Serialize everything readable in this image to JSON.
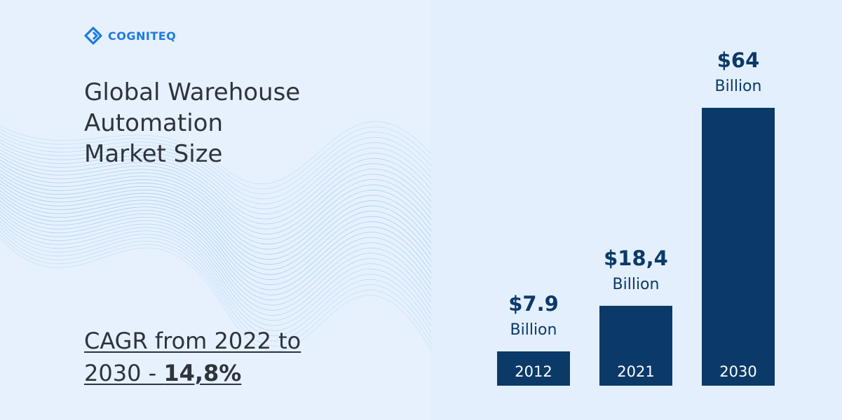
{
  "brand": {
    "name": "COGNITEQ",
    "logo_icon": "cogniteq-logo-icon",
    "color": "#1e7ae0"
  },
  "headline": {
    "lines": [
      "Global Warehouse",
      "Automation",
      "Market Size"
    ]
  },
  "cagr": {
    "line1": "CAGR from 2022 to",
    "line2_prefix": "2030 - ",
    "value": "14,8%"
  },
  "colors": {
    "bar": "#0b3a68",
    "bar_label": "#ffffff",
    "value_text": "#0b3a68",
    "background": "#e6f1fd",
    "accent": "#1e7ae0"
  },
  "chart_data": {
    "type": "bar",
    "categories": [
      "2012",
      "2021",
      "2030"
    ],
    "values": [
      7.9,
      18.4,
      64
    ],
    "value_labels": [
      "$7.9",
      "$18,4",
      "$64"
    ],
    "unit_label": "Billion",
    "title": "Global Warehouse Automation Market Size",
    "xlabel": "",
    "ylabel": "",
    "grid": false,
    "legend": "none"
  }
}
